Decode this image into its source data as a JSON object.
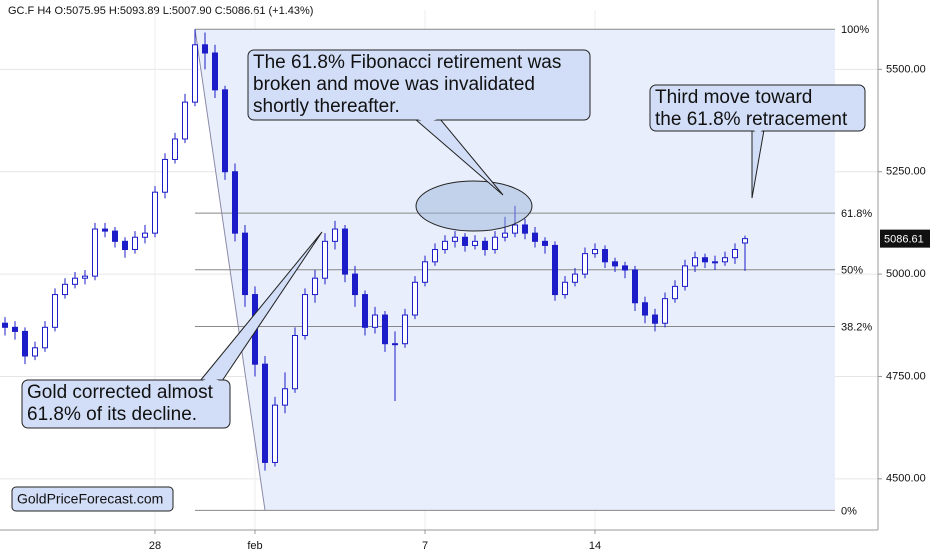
{
  "chart_data": {
    "type": "candlestick",
    "title": "GC.F  H4  O:5075.95  H:5093.89  L:5007.90  C:5086.61  (+1.43%)",
    "color": "#1c1cc8",
    "categories": [
      null,
      null,
      null,
      null,
      null,
      null,
      null,
      null,
      null,
      null,
      null,
      null,
      null,
      null,
      null,
      "28",
      null,
      null,
      null,
      null,
      null,
      null,
      null,
      null,
      null,
      "feb",
      null,
      null,
      null,
      null,
      null,
      null,
      null,
      null,
      null,
      null,
      null,
      null,
      null,
      null,
      null,
      null,
      "7",
      null,
      null,
      null,
      null,
      null,
      null,
      null,
      null,
      null,
      null,
      null,
      null,
      null,
      null,
      null,
      null,
      "14",
      null,
      null,
      null,
      null,
      null,
      null,
      null,
      null,
      null,
      null,
      null,
      null,
      null,
      null,
      null
    ],
    "open": [
      4880,
      4870,
      4860,
      4800,
      4820,
      4870,
      4950,
      4975,
      4990,
      4995,
      5110,
      5105,
      5080,
      5060,
      5090,
      5100,
      5200,
      5280,
      5330,
      5420,
      5560,
      5540,
      5450,
      5250,
      5100,
      4950,
      4780,
      4540,
      4680,
      4720,
      4850,
      4950,
      4990,
      5080,
      5110,
      5000,
      4950,
      4870,
      4900,
      4830,
      4830,
      4900,
      4980,
      5030,
      5060,
      5080,
      5090,
      5070,
      5080,
      5060,
      5090,
      5100,
      5120,
      5100,
      5080,
      5070,
      4950,
      4980,
      5000,
      5050,
      5060,
      5030,
      5020,
      5010,
      4930,
      4900,
      4880,
      4940,
      4970,
      5020,
      5040,
      5030,
      5030,
      5040,
      5075.95
    ],
    "high": [
      4895,
      4885,
      4870,
      4835,
      4885,
      4965,
      4990,
      5005,
      5010,
      5125,
      5125,
      5115,
      5090,
      5105,
      5120,
      5215,
      5295,
      5345,
      5440,
      5598,
      5590,
      5560,
      5460,
      5270,
      5120,
      4970,
      4800,
      4700,
      4760,
      4870,
      4965,
      5010,
      5100,
      5130,
      5120,
      5020,
      4960,
      4920,
      4910,
      4860,
      4915,
      4995,
      5045,
      5075,
      5095,
      5105,
      5100,
      5095,
      5090,
      5105,
      5140,
      5167,
      5135,
      5115,
      5090,
      5080,
      4995,
      5015,
      5065,
      5075,
      5070,
      5040,
      5030,
      5020,
      4945,
      4915,
      4955,
      4985,
      5035,
      5055,
      5050,
      5045,
      5055,
      5075,
      5093.89
    ],
    "low": [
      4850,
      4840,
      4780,
      4790,
      4810,
      4860,
      4940,
      4965,
      4975,
      4985,
      5090,
      5065,
      5040,
      5050,
      5075,
      5090,
      5185,
      5270,
      5320,
      5410,
      5500,
      5430,
      5230,
      5080,
      4920,
      4750,
      4520,
      4530,
      4660,
      4710,
      4840,
      4930,
      4975,
      5060,
      4980,
      4920,
      4850,
      4855,
      4810,
      4690,
      4820,
      4890,
      4970,
      5020,
      5050,
      5065,
      5055,
      5060,
      5045,
      5050,
      5080,
      5090,
      5085,
      5065,
      5050,
      4935,
      4940,
      4970,
      4990,
      5040,
      5015,
      5005,
      4990,
      4910,
      4880,
      4860,
      4870,
      4930,
      4960,
      5005,
      5015,
      5010,
      5020,
      5025,
      5007.9
    ],
    "close": [
      4870,
      4860,
      4800,
      4820,
      4870,
      4950,
      4975,
      4990,
      4995,
      5110,
      5105,
      5080,
      5060,
      5090,
      5100,
      5200,
      5280,
      5330,
      5420,
      5560,
      5540,
      5450,
      5250,
      5100,
      4950,
      4780,
      4540,
      4680,
      4720,
      4850,
      4950,
      4990,
      5080,
      5110,
      5000,
      4950,
      4870,
      4900,
      4830,
      4830,
      4900,
      4980,
      5030,
      5060,
      5080,
      5090,
      5070,
      5080,
      5060,
      5090,
      5100,
      5120,
      5100,
      5080,
      5070,
      4950,
      4980,
      5000,
      5050,
      5060,
      5030,
      5020,
      5010,
      4930,
      4900,
      4880,
      4940,
      4970,
      5020,
      5040,
      5030,
      5030,
      5040,
      5060,
      5086.61
    ],
    "ylim": [
      4375,
      5645
    ],
    "yticks": [
      {
        "value": 4500,
        "label": "4500.00"
      },
      {
        "value": 4750,
        "label": "4750.00"
      },
      {
        "value": 5000,
        "label": "5000.00"
      },
      {
        "value": 5250,
        "label": "5250.00"
      },
      {
        "value": 5500,
        "label": "5500.00"
      }
    ],
    "grid": true,
    "fib_levels": [
      {
        "value": 5598,
        "label": "100%"
      },
      {
        "value": 5149,
        "label": "61.8%"
      },
      {
        "value": 5010.5,
        "label": "50%"
      },
      {
        "value": 4872,
        "label": "38.2%"
      },
      {
        "value": 4423,
        "label": "0%"
      }
    ],
    "annotations": [
      [
        "The 61.8% Fibonacci retirement was",
        "broken and move was invalidated",
        "shortly thereafter."
      ],
      [
        "Third move toward",
        "the 61.8% retracement"
      ],
      [
        "Gold corrected almost",
        "61.8% of its decline."
      ]
    ],
    "watermark": "GoldPriceForecast.com"
  }
}
